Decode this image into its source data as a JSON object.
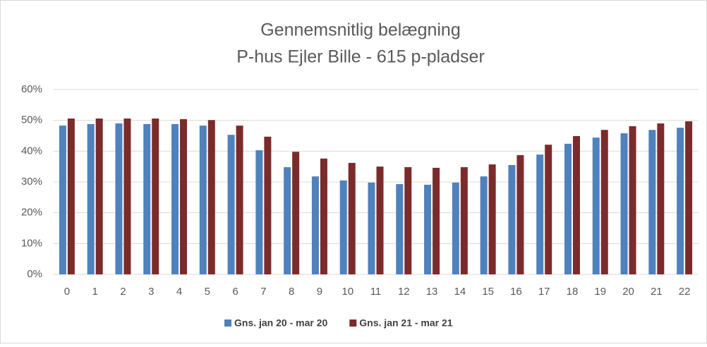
{
  "chart_data": {
    "type": "bar",
    "title": "Gennemsnitlig belægning",
    "subtitle": "P-hus Ejler Bille - 615 p-pladser",
    "categories": [
      "0",
      "1",
      "2",
      "3",
      "4",
      "5",
      "6",
      "7",
      "8",
      "9",
      "10",
      "11",
      "12",
      "13",
      "14",
      "15",
      "16",
      "17",
      "18",
      "19",
      "20",
      "21",
      "22"
    ],
    "series": [
      {
        "name": "Gns. jan 20 - mar 20",
        "color": "#4f81bd",
        "values": [
          48.3,
          48.8,
          49.0,
          48.8,
          48.8,
          48.3,
          45.3,
          40.3,
          34.8,
          31.8,
          30.5,
          29.8,
          29.3,
          29.1,
          29.8,
          31.8,
          35.5,
          38.9,
          42.4,
          44.4,
          45.8,
          46.9,
          47.6
        ]
      },
      {
        "name": "Gns. jan 21 - mar 21",
        "color": "#7b2b2b",
        "values": [
          50.6,
          50.6,
          50.6,
          50.6,
          50.4,
          50.1,
          48.3,
          44.7,
          39.8,
          37.6,
          36.2,
          35.0,
          34.8,
          34.6,
          34.8,
          35.7,
          38.7,
          42.1,
          44.9,
          46.9,
          48.1,
          49.0,
          49.7
        ]
      }
    ],
    "ylim": [
      0,
      60
    ],
    "yticks": [
      {
        "value": 0,
        "label": "0%"
      },
      {
        "value": 10,
        "label": "10%"
      },
      {
        "value": 20,
        "label": "20%"
      },
      {
        "value": 30,
        "label": "30%"
      },
      {
        "value": 40,
        "label": "40%"
      },
      {
        "value": 50,
        "label": "50%"
      },
      {
        "value": 60,
        "label": "60%"
      }
    ],
    "grid": true
  }
}
